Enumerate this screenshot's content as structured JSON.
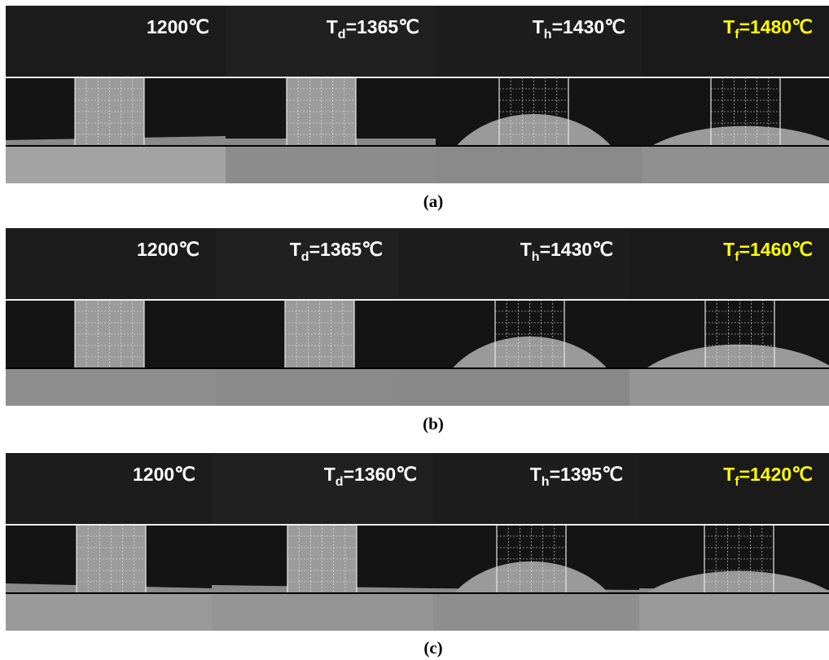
{
  "panels": [
    {
      "caption": "(a)",
      "frames": [
        {
          "label": "1200℃"
        },
        {
          "symbol": "T",
          "subscript": "d",
          "label": "=1365℃"
        },
        {
          "symbol": "T",
          "subscript": "h",
          "label": "=1430℃"
        },
        {
          "symbol": "T",
          "subscript": "f",
          "label": "=1480℃"
        }
      ]
    },
    {
      "caption": "(b)",
      "frames": [
        {
          "label": "1200℃"
        },
        {
          "symbol": "T",
          "subscript": "d",
          "label": "=1365℃"
        },
        {
          "symbol": "T",
          "subscript": "h",
          "label": "=1430℃"
        },
        {
          "symbol": "T",
          "subscript": "f",
          "label": "=1460℃"
        }
      ]
    },
    {
      "caption": "(c)",
      "frames": [
        {
          "label": "1200℃"
        },
        {
          "symbol": "T",
          "subscript": "d",
          "label": "=1360℃"
        },
        {
          "symbol": "T",
          "subscript": "h",
          "label": "=1395℃"
        },
        {
          "symbol": "T",
          "subscript": "f",
          "label": "=1420℃"
        }
      ]
    }
  ]
}
